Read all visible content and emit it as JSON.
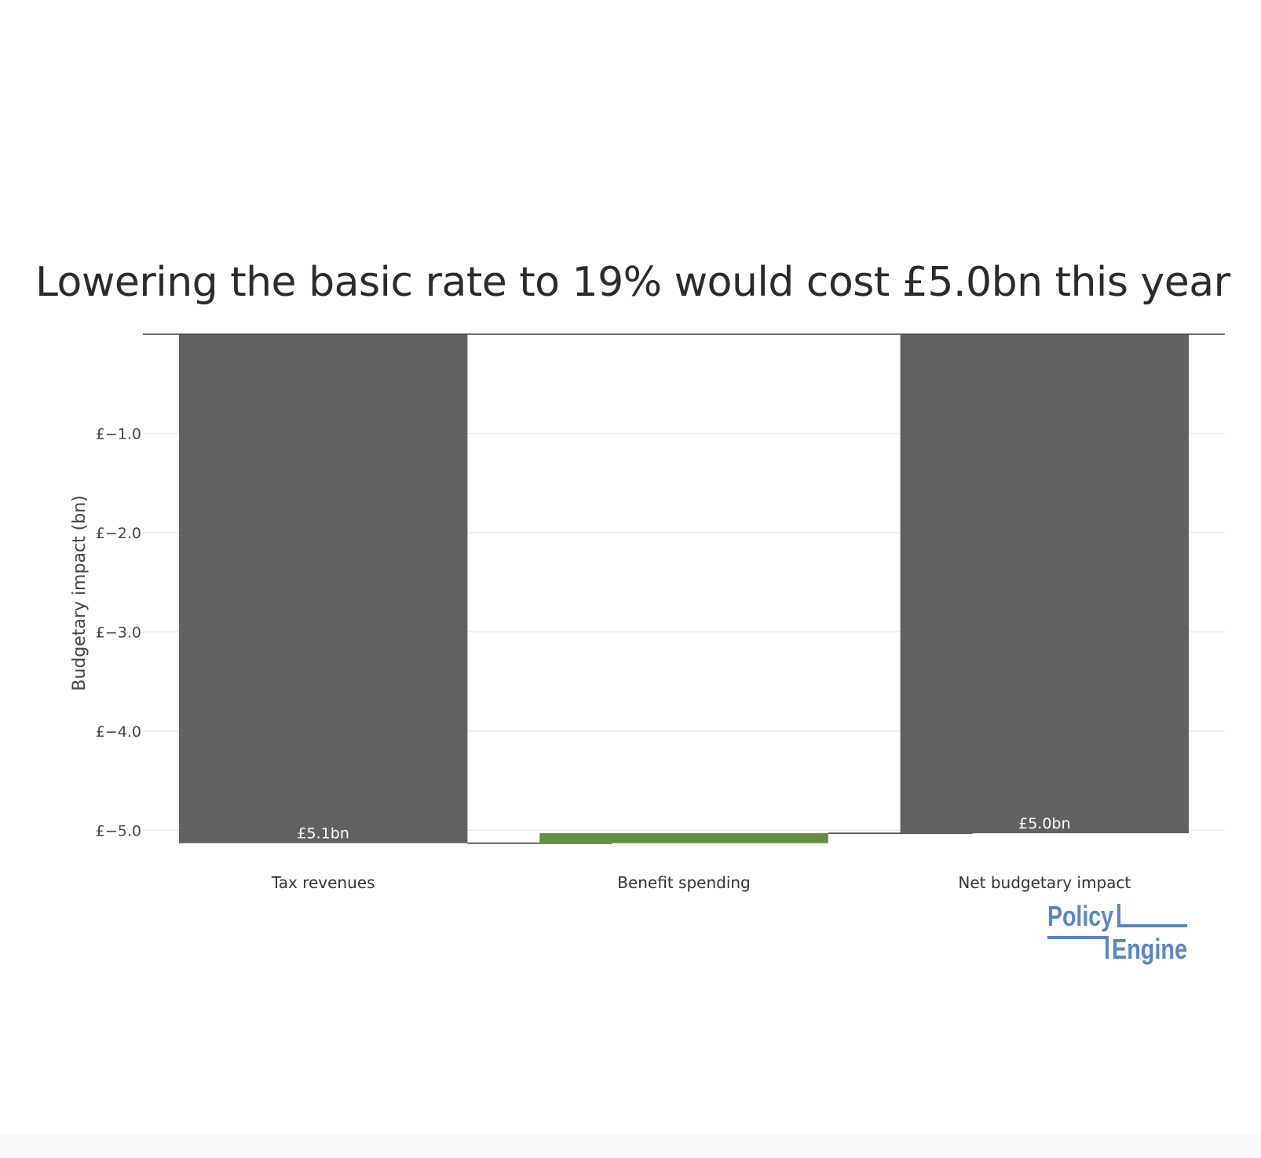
{
  "colors": {
    "decrease": "#616161",
    "increase": "#63903e",
    "connector": "#616161",
    "grid": "#ebebeb",
    "logo": "#5a87c4"
  },
  "chart_data": {
    "type": "bar",
    "subtype": "waterfall",
    "title": "Lowering the basic rate to 19% would cost £5.0bn this year",
    "ylabel": "Budgetary impact (bn)",
    "xlabel": "",
    "ylim": [
      -5.14,
      -0.0
    ],
    "yticks": [
      -1.0,
      -2.0,
      -3.0,
      -4.0,
      -5.0
    ],
    "ytick_labels": [
      "£−1.0",
      "£−2.0",
      "£−3.0",
      "£−4.0",
      "£−5.0"
    ],
    "grid": true,
    "categories": [
      "Tax revenues",
      "Benefit spending",
      "Net budgetary impact"
    ],
    "bars": [
      {
        "category": "Tax revenues",
        "base": 0,
        "value": -5.13,
        "label": "£5.1bn",
        "color_key": "decrease"
      },
      {
        "category": "Benefit spending",
        "base": -5.13,
        "value": 0.1,
        "label": "",
        "color_key": "increase"
      },
      {
        "category": "Net budgetary impact",
        "base": 0,
        "value": -5.03,
        "label": "£5.0bn",
        "color_key": "decrease"
      }
    ]
  },
  "logo": {
    "line1": "Policy",
    "line2": "Engine"
  }
}
